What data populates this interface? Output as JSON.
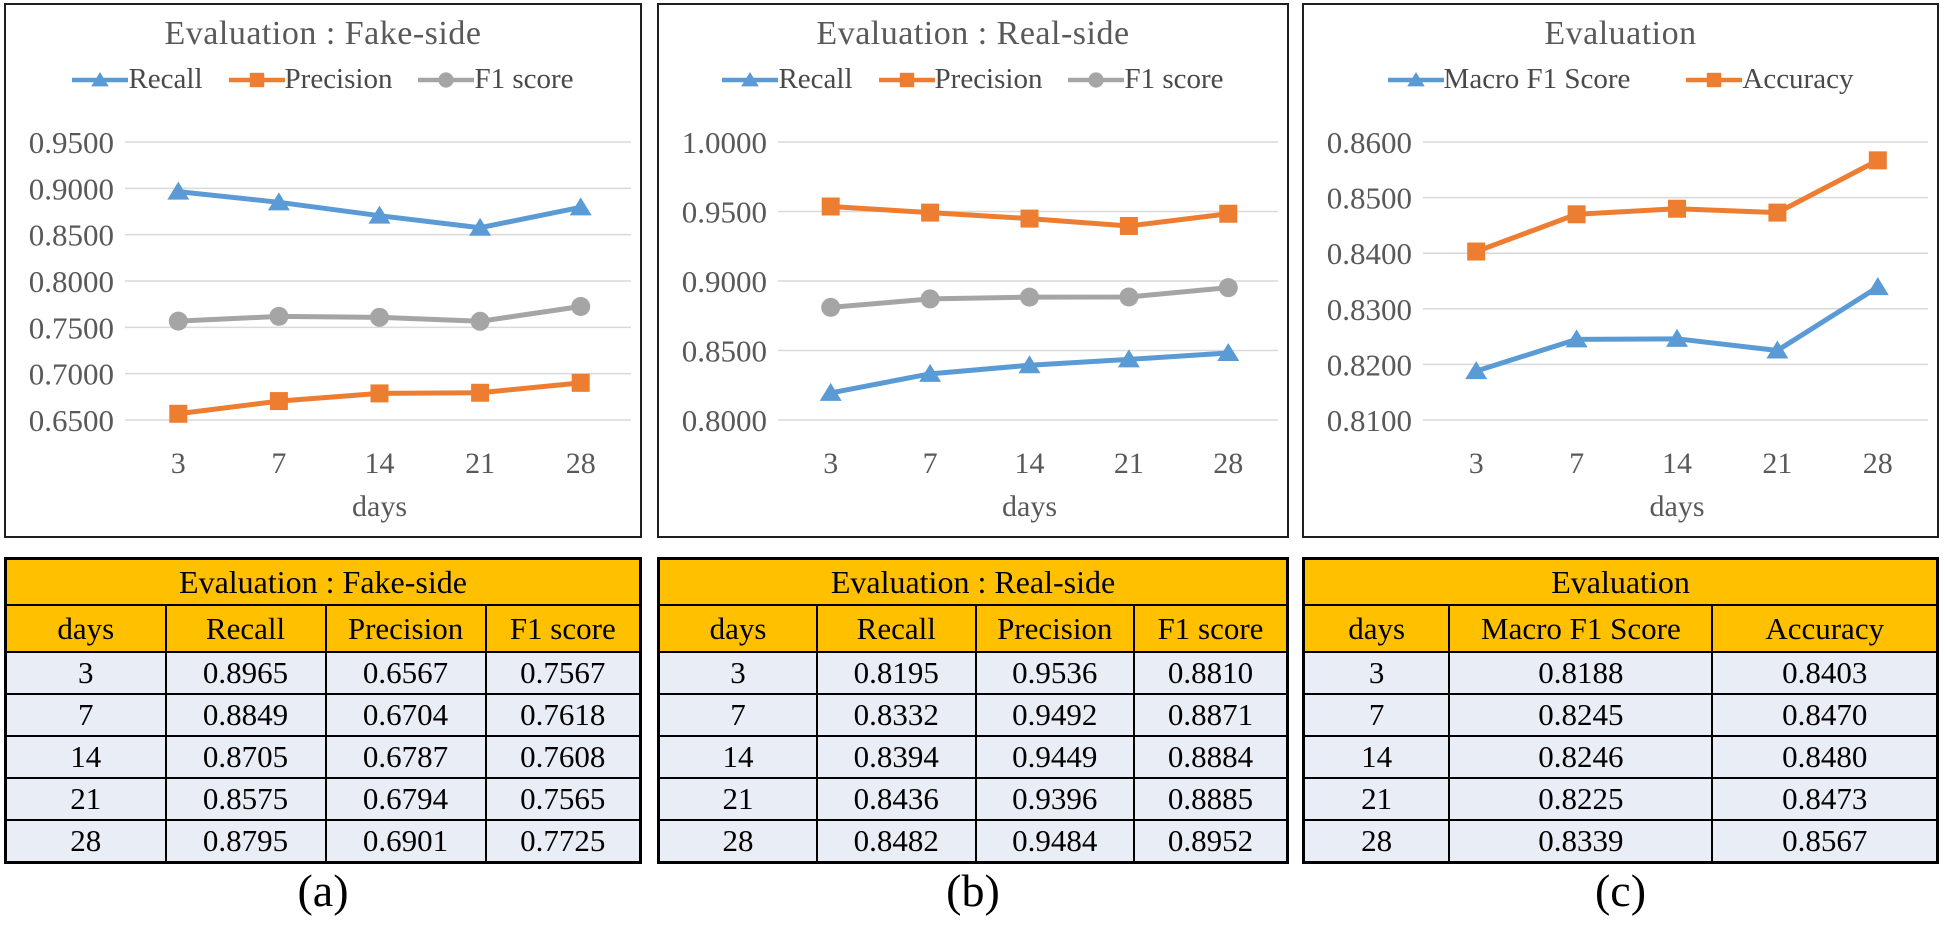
{
  "colors": {
    "series_blue": "#5B9BD5",
    "series_orange": "#ED7D31",
    "series_gray": "#A5A5A5",
    "gridline": "#D9D9D9",
    "chart_text": "#595959",
    "table_header_bg": "#FFC000",
    "table_row_bg": "#E9EDF6",
    "table_border": "#000000",
    "panel_border": "#1f1f1f"
  },
  "captions": [
    "(a)",
    "(b)",
    "(c)"
  ],
  "chart_data": [
    {
      "type": "line",
      "title": "Evaluation : Fake-side",
      "categories": [
        "3",
        "7",
        "14",
        "21",
        "28"
      ],
      "xlabel": "days",
      "ylim": [
        0.65,
        0.95
      ],
      "ytick_step": 0.05,
      "ytick_labels": [
        "0.9500",
        "0.9000",
        "0.8500",
        "0.8000",
        "0.7500",
        "0.7000",
        "0.6500"
      ],
      "grid": true,
      "legend_position": "top",
      "series": [
        {
          "name": "Recall",
          "marker": "triangle",
          "color": "#5B9BD5",
          "values": [
            0.8965,
            0.8849,
            0.8705,
            0.8575,
            0.8795
          ]
        },
        {
          "name": "Precision",
          "marker": "square",
          "color": "#ED7D31",
          "values": [
            0.6567,
            0.6704,
            0.6787,
            0.6794,
            0.6901
          ]
        },
        {
          "name": "F1 score",
          "marker": "circle",
          "color": "#A5A5A5",
          "values": [
            0.7567,
            0.7618,
            0.7608,
            0.7565,
            0.7725
          ]
        }
      ]
    },
    {
      "type": "line",
      "title": "Evaluation : Real-side",
      "categories": [
        "3",
        "7",
        "14",
        "21",
        "28"
      ],
      "xlabel": "days",
      "ylim": [
        0.8,
        1.0
      ],
      "ytick_step": 0.05,
      "ytick_labels": [
        "1.0000",
        "0.9500",
        "0.9000",
        "0.8500",
        "0.8000"
      ],
      "grid": true,
      "legend_position": "top",
      "series": [
        {
          "name": "Recall",
          "marker": "triangle",
          "color": "#5B9BD5",
          "values": [
            0.8195,
            0.8332,
            0.8394,
            0.8436,
            0.8482
          ]
        },
        {
          "name": "Precision",
          "marker": "square",
          "color": "#ED7D31",
          "values": [
            0.9536,
            0.9492,
            0.9449,
            0.9396,
            0.9484
          ]
        },
        {
          "name": "F1 score",
          "marker": "circle",
          "color": "#A5A5A5",
          "values": [
            0.881,
            0.8871,
            0.8884,
            0.8885,
            0.8952
          ]
        }
      ]
    },
    {
      "type": "line",
      "title": "Evaluation",
      "categories": [
        "3",
        "7",
        "14",
        "21",
        "28"
      ],
      "xlabel": "days",
      "ylim": [
        0.81,
        0.86
      ],
      "ytick_step": 0.01,
      "ytick_labels": [
        "0.8600",
        "0.8500",
        "0.8400",
        "0.8300",
        "0.8200",
        "0.8100"
      ],
      "grid": true,
      "legend_position": "top",
      "series": [
        {
          "name": "Macro F1 Score",
          "marker": "triangle",
          "color": "#5B9BD5",
          "values": [
            0.8188,
            0.8245,
            0.8246,
            0.8225,
            0.8339
          ]
        },
        {
          "name": "Accuracy",
          "marker": "square",
          "color": "#ED7D31",
          "values": [
            0.8403,
            0.847,
            0.848,
            0.8473,
            0.8567
          ]
        }
      ]
    }
  ],
  "tables": [
    {
      "title": "Evaluation : Fake-side",
      "columns": [
        "days",
        "Recall",
        "Precision",
        "F1 score"
      ],
      "rows": [
        [
          "3",
          "0.8965",
          "0.6567",
          "0.7567"
        ],
        [
          "7",
          "0.8849",
          "0.6704",
          "0.7618"
        ],
        [
          "14",
          "0.8705",
          "0.6787",
          "0.7608"
        ],
        [
          "21",
          "0.8575",
          "0.6794",
          "0.7565"
        ],
        [
          "28",
          "0.8795",
          "0.6901",
          "0.7725"
        ]
      ]
    },
    {
      "title": "Evaluation : Real-side",
      "columns": [
        "days",
        "Recall",
        "Precision",
        "F1 score"
      ],
      "rows": [
        [
          "3",
          "0.8195",
          "0.9536",
          "0.8810"
        ],
        [
          "7",
          "0.8332",
          "0.9492",
          "0.8871"
        ],
        [
          "14",
          "0.8394",
          "0.9449",
          "0.8884"
        ],
        [
          "21",
          "0.8436",
          "0.9396",
          "0.8885"
        ],
        [
          "28",
          "0.8482",
          "0.9484",
          "0.8952"
        ]
      ]
    },
    {
      "title": "Evaluation",
      "columns": [
        "days",
        "Macro F1 Score",
        "Accuracy"
      ],
      "rows": [
        [
          "3",
          "0.8188",
          "0.8403"
        ],
        [
          "7",
          "0.8245",
          "0.8470"
        ],
        [
          "14",
          "0.8246",
          "0.8480"
        ],
        [
          "21",
          "0.8225",
          "0.8473"
        ],
        [
          "28",
          "0.8339",
          "0.8567"
        ]
      ]
    }
  ]
}
